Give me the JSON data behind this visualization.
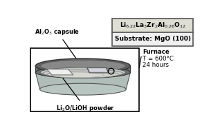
{
  "formula_top": "Li$_{6.22}$La$_3$Zr$_2$Al$_{0.26}$O$_{12}$",
  "formula_bg": "#deded4",
  "substrate_text": "Substrate: MgO (100)",
  "substrate_bg": "#f0f0f0",
  "furnace_text": "Furnace",
  "temp_text": "T = 600°C",
  "hours_text": "24 hours",
  "al2o3_text": "Al$_2$O$_3$ capsule",
  "li2o_text": "Li$_2$O/LiOH powder",
  "background": "#ffffff",
  "box_border": "#000000",
  "rim_dark": "#555555",
  "rim_mid": "#888888",
  "rim_light": "#aaaaaa",
  "glass_color": "#b8c8c0",
  "powder_color": "#c0c0c0",
  "inner_dark": "#909090",
  "slab_color": "#e8e8e8",
  "film_dark": "#c8c8d0"
}
